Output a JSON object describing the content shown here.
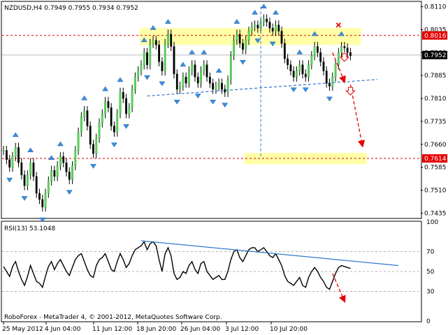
{
  "chart_data": [
    {
      "type": "candlestick",
      "title": "NZDUSD,H4",
      "ohlc": {
        "open": "0.7949",
        "high": "0.7955",
        "low": "0.7934",
        "close": "0.7952"
      },
      "y_ticks": [
        "0.8110",
        "0.8035",
        "0.7960",
        "0.7885",
        "0.7810",
        "0.7735",
        "0.7660",
        "0.7585",
        "0.7510",
        "0.7435"
      ],
      "ylim": [
        0.742,
        0.8125
      ],
      "price_labels": [
        {
          "text": "0.8016",
          "value": 0.8016,
          "color": "#e60000"
        },
        {
          "text": "0.7952",
          "value": 0.7952,
          "color": "#000000"
        },
        {
          "text": "0.7614",
          "value": 0.7614,
          "color": "#e60000"
        }
      ],
      "zones": [
        {
          "name": "resistance-zone",
          "from_bar": 46,
          "to_bar": 120,
          "y_low": 0.7985,
          "y_high": 0.804,
          "color": "#ffff99"
        },
        {
          "name": "target-zone",
          "from_bar": 81,
          "to_bar": 122,
          "y_low": 0.7595,
          "y_high": 0.7632,
          "color": "#ffff99"
        }
      ],
      "close_series": [
        0.764,
        0.761,
        0.7585,
        0.762,
        0.765,
        0.76,
        0.756,
        0.7525,
        0.756,
        0.76,
        0.7555,
        0.75,
        0.748,
        0.7455,
        0.75,
        0.754,
        0.7575,
        0.7555,
        0.759,
        0.762,
        0.76,
        0.757,
        0.7545,
        0.759,
        0.764,
        0.77,
        0.775,
        0.777,
        0.772,
        0.766,
        0.763,
        0.768,
        0.773,
        0.776,
        0.78,
        0.778,
        0.772,
        0.77,
        0.776,
        0.783,
        0.781,
        0.776,
        0.778,
        0.784,
        0.788,
        0.79,
        0.792,
        0.796,
        0.792,
        0.799,
        0.8,
        0.7985,
        0.793,
        0.79,
        0.799,
        0.802,
        0.798,
        0.789,
        0.784,
        0.785,
        0.788,
        0.786,
        0.79,
        0.792,
        0.788,
        0.786,
        0.79,
        0.792,
        0.788,
        0.786,
        0.784,
        0.785,
        0.786,
        0.784,
        0.783,
        0.787,
        0.795,
        0.8,
        0.802,
        0.799,
        0.797,
        0.8,
        0.803,
        0.8045,
        0.805,
        0.804,
        0.806,
        0.807,
        0.806,
        0.804,
        0.803,
        0.805,
        0.803,
        0.799,
        0.794,
        0.792,
        0.79,
        0.788,
        0.79,
        0.792,
        0.789,
        0.788,
        0.792,
        0.795,
        0.798,
        0.796,
        0.793,
        0.79,
        0.786,
        0.785,
        0.788,
        0.792,
        0.796,
        0.798,
        0.7975,
        0.796,
        0.795
      ],
      "fractal_markers": "blue arrows above/below bars",
      "trend_line": {
        "from_bar": 48,
        "from_value": 0.7818,
        "to_bar": 125,
        "to_value": 0.7872,
        "color": "#3377cc",
        "style": "dashed"
      },
      "forecast_arrows": [
        {
          "from": [
            110,
            0.796
          ],
          "to": [
            114,
            0.7865
          ],
          "color": "#e60000"
        },
        {
          "from": [
            116,
            0.7855
          ],
          "to": [
            120,
            0.7655
          ],
          "color": "#e60000"
        }
      ],
      "down_markers": [
        {
          "bar": 114,
          "value": 0.7945
        },
        {
          "bar": 116,
          "value": 0.7835
        }
      ],
      "cross_marker": {
        "bar": 112,
        "value": 0.805
      },
      "vertical_guide": {
        "bar": 86,
        "from": 0.811,
        "to": 0.7614
      },
      "grid": false
    },
    {
      "type": "line",
      "title": "RSI(13) 53.1048",
      "y_ticks": [
        "100",
        "70",
        "50",
        "30",
        "0"
      ],
      "ylim": [
        0,
        100
      ],
      "levels": [
        70,
        50,
        30
      ],
      "values": [
        55,
        50,
        45,
        55,
        60,
        50,
        42,
        36,
        45,
        56,
        48,
        40,
        38,
        34,
        45,
        55,
        60,
        52,
        58,
        62,
        56,
        50,
        46,
        54,
        62,
        66,
        68,
        60,
        52,
        46,
        44,
        56,
        62,
        64,
        68,
        60,
        52,
        50,
        60,
        68,
        62,
        54,
        58,
        66,
        72,
        74,
        76,
        80,
        72,
        78,
        80,
        76,
        62,
        50,
        68,
        74,
        66,
        48,
        42,
        44,
        50,
        48,
        56,
        60,
        52,
        48,
        58,
        60,
        50,
        46,
        42,
        44,
        46,
        42,
        42,
        50,
        62,
        70,
        72,
        64,
        60,
        66,
        72,
        74,
        74,
        70,
        72,
        74,
        70,
        66,
        64,
        68,
        62,
        56,
        46,
        40,
        38,
        36,
        40,
        44,
        36,
        34,
        44,
        50,
        54,
        50,
        44,
        40,
        34,
        32,
        40,
        48,
        54,
        56,
        55,
        54,
        53
      ],
      "trend_line": {
        "from_bar": 46,
        "from_value": 81,
        "to_bar": 132,
        "to_value": 56,
        "color": "#3377cc"
      },
      "forecast_arrow": {
        "from": [
          110,
          48
        ],
        "to": [
          114,
          20
        ],
        "color": "#e60000"
      },
      "footer": "RoboForex - MetaTrader 4, © 2001-2012, MetaQuotes Software Corp."
    }
  ],
  "x_ticks": [
    "25 May 2012",
    "4 Jun 04:00",
    "11 Jun 12:00",
    "18 Jun 20:00",
    "26 Jun 04:00",
    "3 Jul 12:00",
    "10 Jul 20:00"
  ]
}
